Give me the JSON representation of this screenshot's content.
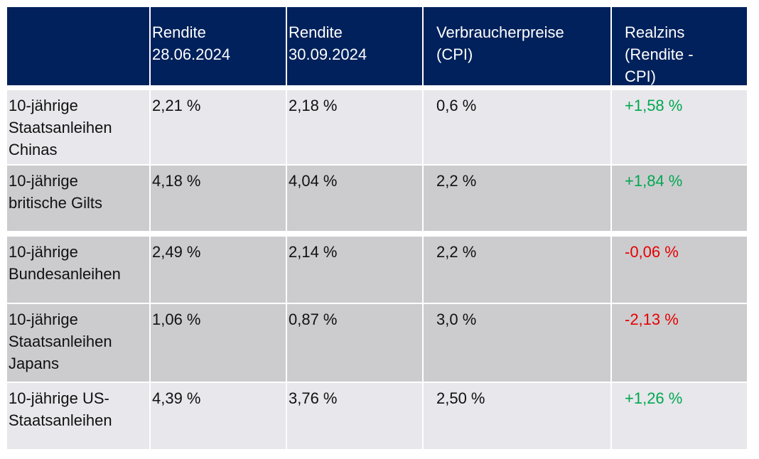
{
  "table": {
    "header": [
      "",
      "Rendite\n28.06.2024",
      "Rendite\n30.09.2024",
      "Verbraucherpreise\n(CPI)",
      "Realzins\n(Rendite -\nCPI)"
    ],
    "rows": [
      [
        "10-jährige\nStaatsanleihen\nChinas",
        "2,21 %",
        "2,18 %",
        "0,6 %",
        "+1,58 %"
      ],
      [
        "10-jährige\nbritische Gilts",
        "4,18 %",
        "4,04 %",
        "2,2 %",
        "+1,84 %"
      ],
      [
        "10-jährige\nBundesanleihen",
        "2,49 %",
        "2,14 %",
        "2,2 %",
        "-0,06 %"
      ],
      [
        "10-jährige\nStaatsanleihen\nJapans",
        "1,06 %",
        "0,87 %",
        "3,0 %",
        "-2,13 %"
      ],
      [
        "10-jährige US-\nStaatsanleihen",
        "4,39 %",
        "3,76 %",
        "2,50 %",
        "+1,26 %"
      ]
    ]
  }
}
